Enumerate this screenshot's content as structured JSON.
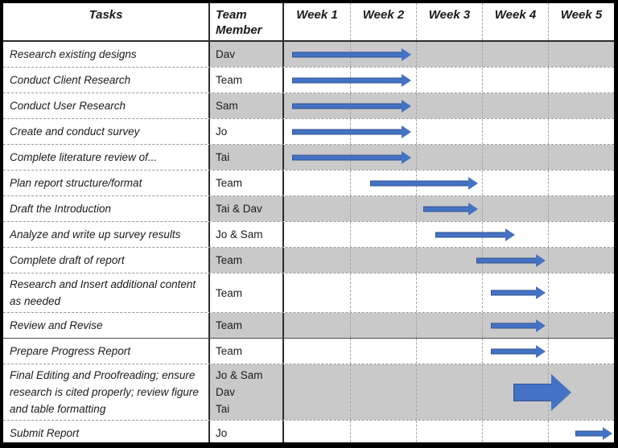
{
  "header": {
    "tasks_label": "Tasks",
    "member_label": "Team\nMember"
  },
  "colors": {
    "arrow_fill": "#4472C4",
    "arrow_outline": "#2F528F",
    "shaded_row": "#C9C9C9",
    "grid_line": "#A6A6A6",
    "outer_border": "#000000"
  },
  "chart_data": {
    "type": "gantt",
    "title": "",
    "columns": [
      "Tasks",
      "Team Member",
      "Week 1",
      "Week 2",
      "Week 3",
      "Week 4",
      "Week 5"
    ],
    "week_labels": [
      "Week 1",
      "Week 2",
      "Week 3",
      "Week 4",
      "Week 5"
    ],
    "x_axis": "weeks",
    "x_range": [
      1,
      5
    ],
    "grid": "dashed",
    "rows": [
      {
        "task": "Research existing designs",
        "member": "Dav",
        "start_week": 1.12,
        "end_week": 2.93,
        "arrow_style": "thin"
      },
      {
        "task": "Conduct Client Research",
        "member": "Team",
        "start_week": 1.12,
        "end_week": 2.93,
        "arrow_style": "thin"
      },
      {
        "task": "Conduct User Research",
        "member": "Sam",
        "start_week": 1.12,
        "end_week": 2.93,
        "arrow_style": "thin"
      },
      {
        "task": "Create and conduct survey",
        "member": "Jo",
        "start_week": 1.12,
        "end_week": 2.93,
        "arrow_style": "thin"
      },
      {
        "task": "Complete literature review of...",
        "member": "Tai",
        "start_week": 1.12,
        "end_week": 2.93,
        "arrow_style": "thin"
      },
      {
        "task": "Plan report structure/format",
        "member": "Team",
        "start_week": 2.3,
        "end_week": 3.94,
        "arrow_style": "thin"
      },
      {
        "task": "Draft the Introduction",
        "member": "Tai & Dav",
        "start_week": 3.11,
        "end_week": 3.94,
        "arrow_style": "thin"
      },
      {
        "task": "Analyze and write up survey results",
        "member": "Jo & Sam",
        "start_week": 3.29,
        "end_week": 4.5,
        "arrow_style": "thin"
      },
      {
        "task": "Complete draft of report",
        "member": "Team",
        "start_week": 3.91,
        "end_week": 4.96,
        "arrow_style": "thin"
      },
      {
        "task": "Research and Insert additional content as needed",
        "member": "Team",
        "start_week": 4.13,
        "end_week": 4.96,
        "arrow_style": "thin"
      },
      {
        "task": "Review and Revise",
        "member": "Team",
        "start_week": 4.14,
        "end_week": 4.96,
        "arrow_style": "thin"
      },
      {
        "task": "Prepare Progress Report",
        "member": "Team",
        "start_week": 4.14,
        "end_week": 4.96,
        "arrow_style": "thin"
      },
      {
        "task": "Final Editing and Proofreading; ensure research is cited properly; review figure and table formatting",
        "member": "Jo & Sam\nDav\nTai",
        "start_week": 4.48,
        "end_week": 5.35,
        "arrow_style": "block"
      },
      {
        "task": "Submit Report",
        "member": "Jo",
        "start_week": 5.42,
        "end_week": 5.98,
        "arrow_style": "thin"
      }
    ]
  }
}
